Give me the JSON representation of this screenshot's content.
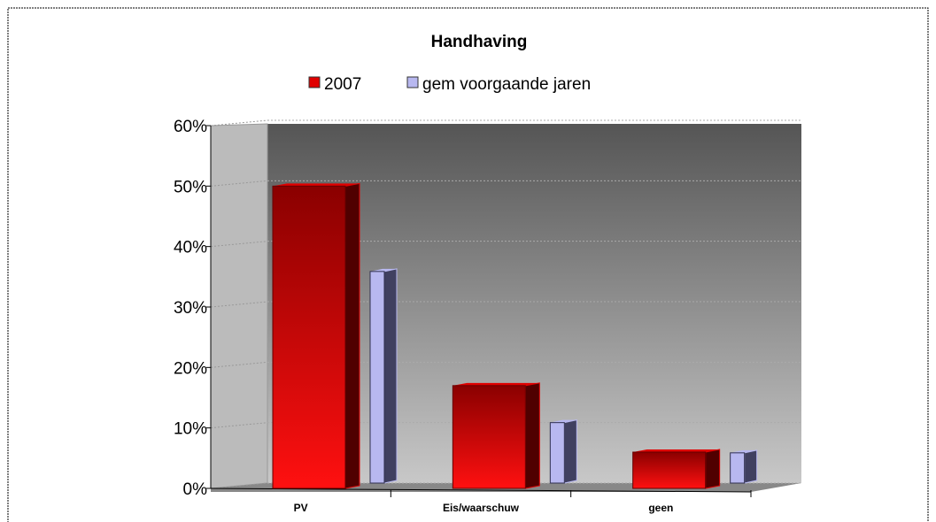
{
  "chart_data": {
    "type": "bar3d",
    "title": "Handhaving",
    "categories": [
      "PV",
      "Eis/waarschuw",
      "geen"
    ],
    "series": [
      {
        "name": "2007",
        "color": "#e00000",
        "values": [
          50,
          17,
          6
        ]
      },
      {
        "name": "gem voorgaande jaren",
        "color": "#b8b8f0",
        "values": [
          35,
          10,
          5
        ]
      }
    ],
    "ylim": [
      0,
      60
    ],
    "yticks": [
      {
        "value": 0,
        "label": "0%"
      },
      {
        "value": 10,
        "label": "10%"
      },
      {
        "value": 20,
        "label": "20%"
      },
      {
        "value": 30,
        "label": "30%"
      },
      {
        "value": 40,
        "label": "40%"
      },
      {
        "value": 50,
        "label": "50%"
      },
      {
        "value": 60,
        "label": "60%"
      }
    ],
    "grid": true,
    "legend": "top"
  }
}
